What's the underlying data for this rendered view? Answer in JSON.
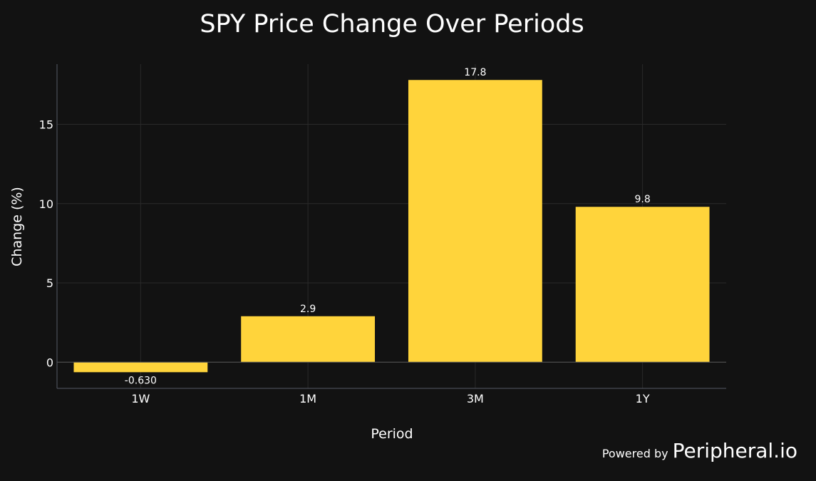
{
  "chart_data": {
    "type": "bar",
    "title": "SPY Price Change Over Periods",
    "xlabel": "Period",
    "ylabel": "Change (%)",
    "categories": [
      "1W",
      "1M",
      "3M",
      "1Y"
    ],
    "values": [
      -0.63,
      2.9,
      17.8,
      9.8
    ],
    "data_labels": [
      "-0.630",
      "2.9",
      "17.8",
      "9.8"
    ],
    "yticks": [
      0,
      5,
      10,
      15
    ],
    "ylim": [
      -1.65,
      18.8
    ],
    "grid": true,
    "bar_color": "#FFD43B",
    "background_color": "#121212"
  },
  "watermark": {
    "powered_by": "Powered by",
    "brand": "Peripheral.io"
  }
}
